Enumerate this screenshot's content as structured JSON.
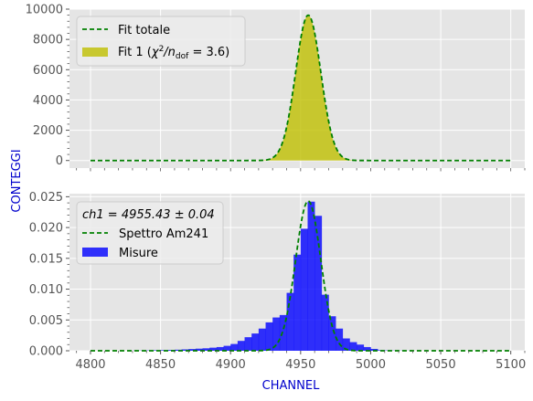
{
  "chart_data": [
    {
      "type": "area",
      "panel": "top",
      "xlim": [
        4785,
        4510
      ],
      "ylim": [
        -500,
        10000
      ],
      "yticks": [
        0,
        2000,
        4000,
        6000,
        8000,
        10000
      ],
      "ytick_labels": [
        "0",
        "2000",
        "4000",
        "6000",
        "8000",
        "10000"
      ],
      "grid": true,
      "legend_position": "top-left",
      "legend": [
        {
          "label": "Fit totale",
          "style": "dashed-line",
          "color": "#008000"
        },
        {
          "label": "Fit 1 (χ²/n_dof = 3.6)",
          "label_main": "Fit 1 (",
          "label_chi": "χ",
          "label_sup": "2",
          "label_n": "/n",
          "label_sub": "dof",
          "label_tail": " = 3.6)",
          "style": "filled-area",
          "color": "#bfbf00"
        }
      ],
      "series": [
        {
          "name": "Fit totale",
          "kind": "gaussian",
          "amplitude": 9600,
          "mean": 4955.43,
          "sigma": 9,
          "x_range": [
            4800,
            5100
          ],
          "color": "#008000",
          "linestyle": "dashed"
        },
        {
          "name": "Fit 1",
          "kind": "gaussian-fill",
          "amplitude": 9600,
          "mean": 4955.43,
          "sigma": 9,
          "x_range": [
            4800,
            5100
          ],
          "color": "#bfbf00",
          "alpha": 0.8
        }
      ]
    },
    {
      "type": "bar",
      "panel": "bottom",
      "xlim": [
        4785,
        5110
      ],
      "ylim": [
        0,
        0.0255
      ],
      "yticks": [
        0,
        0.005,
        0.01,
        0.015,
        0.02,
        0.025
      ],
      "ytick_labels": [
        "0.000",
        "0.005",
        "0.010",
        "0.015",
        "0.020",
        "0.025"
      ],
      "xticks": [
        4800,
        4850,
        4900,
        4950,
        5000,
        5050,
        5100
      ],
      "xtick_labels": [
        "4800",
        "4850",
        "4900",
        "4950",
        "5000",
        "5050",
        "5100"
      ],
      "xlabel": "CHANNEL",
      "ylabel": "CONTEGGI",
      "grid": true,
      "legend_position": "top-left",
      "legend": [
        {
          "label": "ch1 = 4955.43 ± 0.04",
          "style": "none"
        },
        {
          "label": "Spettro Am241",
          "style": "dashed-line",
          "color": "#008000"
        },
        {
          "label": "Misure",
          "style": "filled-box",
          "color": "#0000ff"
        }
      ],
      "bins": {
        "edges": [
          4830,
          4835,
          4840,
          4845,
          4850,
          4855,
          4860,
          4865,
          4870,
          4875,
          4880,
          4885,
          4890,
          4895,
          4900,
          4905,
          4910,
          4915,
          4920,
          4925,
          4930,
          4935,
          4940,
          4945,
          4950,
          4955,
          4960,
          4965,
          4970,
          4975,
          4980,
          4985,
          4990,
          4995,
          5000,
          5005,
          5010,
          5015,
          5020,
          5025,
          5030
        ],
        "values": [
          2e-05,
          3e-05,
          5e-05,
          8e-05,
          0.0001,
          0.00013,
          0.00017,
          0.00022,
          0.00028,
          0.00034,
          0.0004,
          0.0005,
          0.0006,
          0.0008,
          0.0011,
          0.0016,
          0.0022,
          0.0028,
          0.0036,
          0.0046,
          0.0054,
          0.0058,
          0.0094,
          0.0156,
          0.0198,
          0.0242,
          0.0219,
          0.0091,
          0.0056,
          0.0036,
          0.002,
          0.0014,
          0.001,
          0.0006,
          0.0003,
          0.0001,
          5e-05,
          3e-05,
          2e-05,
          1e-05
        ]
      },
      "series": [
        {
          "name": "Spettro Am241",
          "kind": "gaussian",
          "amplitude": 0.0243,
          "mean": 4955.43,
          "sigma": 9,
          "x_range": [
            4800,
            5100
          ],
          "color": "#008000",
          "linestyle": "dashed"
        },
        {
          "name": "Misure",
          "kind": "histogram",
          "color": "#0000ff",
          "alpha": 0.8
        }
      ]
    }
  ]
}
